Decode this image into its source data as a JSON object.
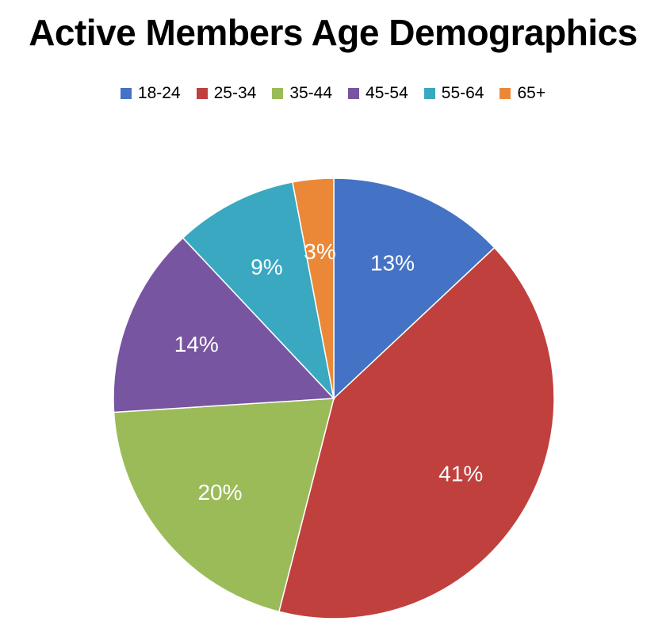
{
  "chart_data": {
    "type": "pie",
    "title": "Active Members Age Demographics",
    "legend_position": "top",
    "categories": [
      "18-24",
      "25-34",
      "35-44",
      "45-54",
      "55-64",
      "65+"
    ],
    "values": [
      13,
      41,
      20,
      14,
      9,
      3
    ],
    "labels": [
      "13%",
      "41%",
      "20%",
      "14%",
      "9%",
      "3%"
    ],
    "colors": [
      "#4472c4",
      "#c0403e",
      "#9bbb59",
      "#7855a0",
      "#3aa8c1",
      "#eb8838"
    ]
  }
}
